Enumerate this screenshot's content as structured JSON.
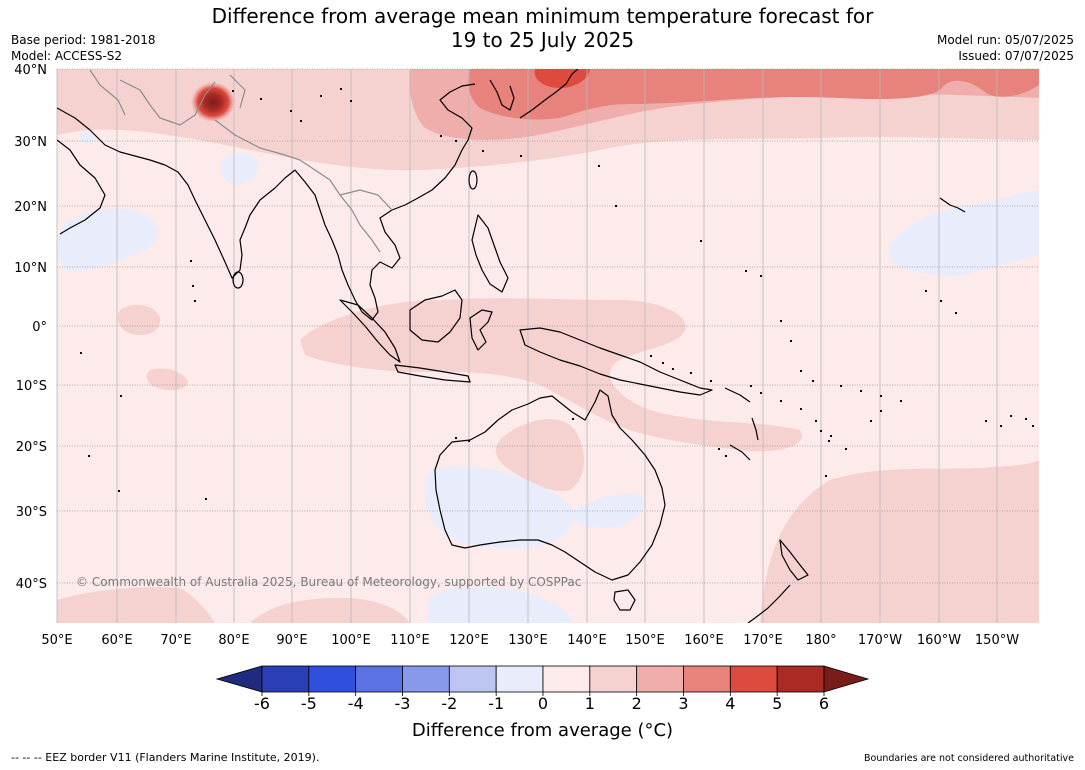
{
  "header": {
    "title_line1": "Difference from average mean minimum temperature forecast for",
    "title_line2": "19 to 25 July 2025",
    "base_period": "Base period: 1981-2018",
    "model": "Model: ACCESS-S2",
    "model_run": "Model run: 05/07/2025",
    "issued": "Issued: 07/07/2025"
  },
  "map": {
    "lat_labels": [
      "40°N",
      "30°N",
      "20°N",
      "10°N",
      "0°",
      "10°S",
      "20°S",
      "30°S",
      "40°S"
    ],
    "lon_labels": [
      "50°E",
      "60°E",
      "70°E",
      "80°E",
      "90°E",
      "100°E",
      "110°E",
      "120°E",
      "130°E",
      "140°E",
      "150°E",
      "160°E",
      "170°E",
      "180°",
      "170°W",
      "160°W",
      "150°W"
    ],
    "copyright": "© Commonwealth of Australia 2025, Bureau of Meteorology, supported by COSPPac",
    "colors": {
      "n1": "#e8ecfb",
      "p0": "#fcebea",
      "p1": "#f5d2cf",
      "p2": "#efaeab",
      "p3": "#e8827c",
      "p4": "#dd4a3e",
      "p5": "#a92b24"
    }
  },
  "legend": {
    "ticks": [
      "-6",
      "-5",
      "-4",
      "-3",
      "-2",
      "-1",
      "0",
      "1",
      "2",
      "3",
      "4",
      "5",
      "6"
    ],
    "title": "Difference from average (°C)",
    "colors": [
      "#1f2b7e",
      "#2a3fb5",
      "#2f4fdf",
      "#5b72e4",
      "#8898eb",
      "#bdc6f2",
      "#e8ecfb",
      "#fcebea",
      "#f5d2cf",
      "#efaeab",
      "#e8827c",
      "#dd4a3e",
      "#a92b24",
      "#7a1d18"
    ]
  },
  "footer": {
    "eez_note": "--  --  -- EEZ border V11 (Flanders Marine Institute, 2019).",
    "disclaimer": "Boundaries are not considered authoritative"
  }
}
